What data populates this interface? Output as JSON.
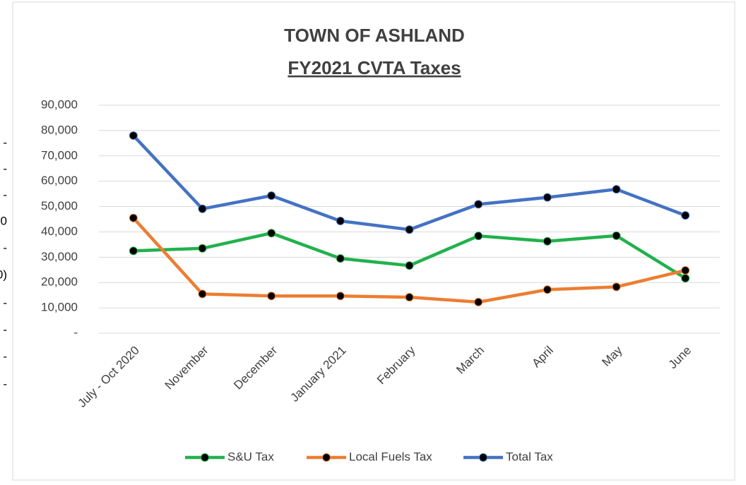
{
  "left_edge_fragments": [
    "-",
    "-",
    "-",
    "0",
    "-",
    "0)",
    "-",
    "-",
    "-",
    "-"
  ],
  "chart_data": {
    "type": "line",
    "title": "TOWN OF ASHLAND",
    "subtitle": "FY2021 CVTA Taxes",
    "categories": [
      "July - Oct 2020",
      "November",
      "December",
      "January 2021",
      "February",
      "March",
      "April",
      "May",
      "June"
    ],
    "series": [
      {
        "name": "S&U Tax",
        "color": "#22b14c",
        "values": [
          32500,
          33500,
          39500,
          29500,
          26700,
          38400,
          36300,
          38500,
          21700
        ]
      },
      {
        "name": "Local Fuels Tax",
        "color": "#ed7d31",
        "values": [
          45500,
          15500,
          14700,
          14700,
          14200,
          12300,
          17200,
          18300,
          24800
        ]
      },
      {
        "name": "Total Tax",
        "color": "#4472c4",
        "values": [
          78000,
          49100,
          54300,
          44300,
          40900,
          50900,
          53600,
          56800,
          46500
        ]
      }
    ],
    "ylim": [
      0,
      90000
    ],
    "yticks": [
      {
        "value": 0,
        "label": "-"
      },
      {
        "value": 10000,
        "label": "10,000"
      },
      {
        "value": 20000,
        "label": "20,000"
      },
      {
        "value": 30000,
        "label": "30,000"
      },
      {
        "value": 40000,
        "label": "40,000"
      },
      {
        "value": 50000,
        "label": "50,000"
      },
      {
        "value": 60000,
        "label": "60,000"
      },
      {
        "value": 70000,
        "label": "70,000"
      },
      {
        "value": 80000,
        "label": "80,000"
      },
      {
        "value": 90000,
        "label": "90,000"
      }
    ],
    "grid": true,
    "legend": "bottom"
  }
}
